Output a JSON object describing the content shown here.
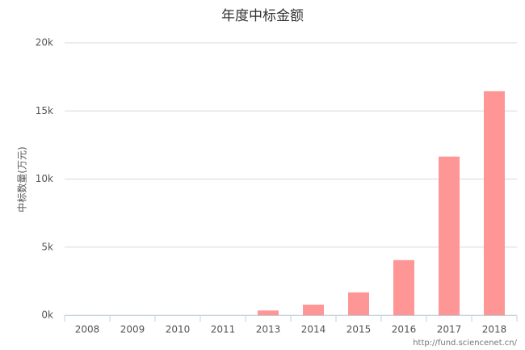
{
  "chart_data": {
    "type": "bar",
    "title": "年度中标金额",
    "y_label": "中标数量(万元)",
    "categories": [
      "2008",
      "2009",
      "2010",
      "2011",
      "2013",
      "2014",
      "2015",
      "2016",
      "2017",
      "2018"
    ],
    "values": [
      0,
      0,
      0,
      0,
      350,
      780,
      1680,
      4050,
      11650,
      16450
    ],
    "color": "#ff9696",
    "ylim": [
      0,
      20000
    ],
    "yticks": [
      {
        "value": 0,
        "label": "0k"
      },
      {
        "value": 5000,
        "label": "5k"
      },
      {
        "value": 10000,
        "label": "10k"
      },
      {
        "value": 15000,
        "label": "15k"
      },
      {
        "value": 20000,
        "label": "20k"
      }
    ],
    "grid": true,
    "credit": "http://fund.sciencenet.cn/"
  }
}
